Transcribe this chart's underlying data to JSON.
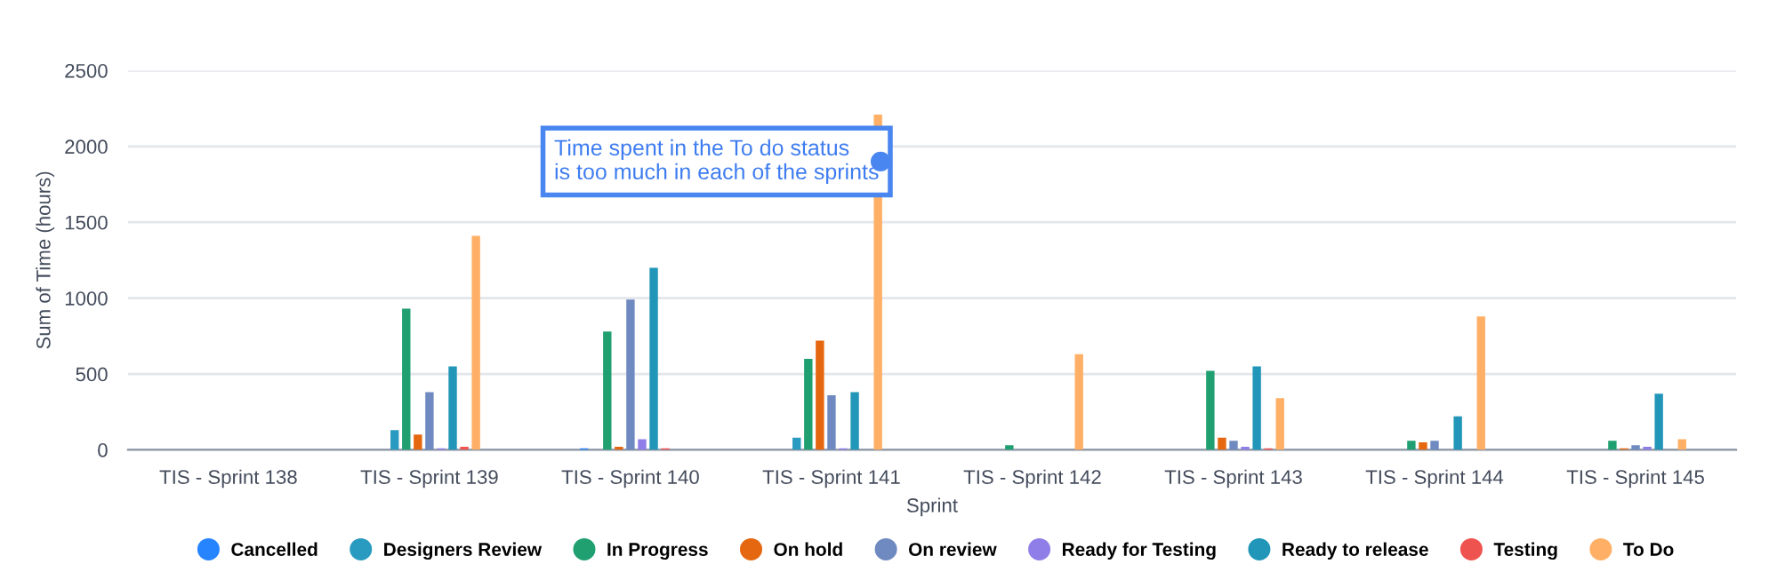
{
  "chart_data": {
    "type": "bar",
    "xlabel": "Sprint",
    "ylabel": "Sum of Time (hours)",
    "categories": [
      "TIS - Sprint 138",
      "TIS - Sprint 139",
      "TIS - Sprint 140",
      "TIS - Sprint 141",
      "TIS - Sprint 142",
      "TIS - Sprint 143",
      "TIS - Sprint 144",
      "TIS - Sprint 145"
    ],
    "series": [
      {
        "name": "Cancelled",
        "color": "#2684ff",
        "values": [
          0,
          0,
          10,
          0,
          0,
          0,
          0,
          0
        ]
      },
      {
        "name": "Designers Review",
        "color": "#2a9bc0",
        "values": [
          0,
          130,
          0,
          80,
          0,
          0,
          0,
          0
        ]
      },
      {
        "name": "In Progress",
        "color": "#20a070",
        "values": [
          0,
          930,
          780,
          600,
          30,
          520,
          60,
          60
        ]
      },
      {
        "name": "On hold",
        "color": "#e5670f",
        "values": [
          0,
          100,
          20,
          720,
          0,
          80,
          50,
          10
        ]
      },
      {
        "name": "On review",
        "color": "#6f8ac0",
        "values": [
          0,
          380,
          990,
          360,
          0,
          60,
          60,
          30
        ]
      },
      {
        "name": "Ready for Testing",
        "color": "#8f7ee8",
        "values": [
          0,
          10,
          70,
          10,
          0,
          20,
          0,
          20
        ]
      },
      {
        "name": "Ready to release",
        "color": "#2196b8",
        "values": [
          0,
          550,
          1200,
          380,
          0,
          550,
          220,
          370
        ]
      },
      {
        "name": "Testing",
        "color": "#ef5350",
        "values": [
          0,
          20,
          10,
          0,
          0,
          10,
          0,
          0
        ]
      },
      {
        "name": "To Do",
        "color": "#ffb066",
        "values": [
          0,
          1410,
          null,
          2210,
          630,
          340,
          880,
          70
        ]
      }
    ],
    "ylim": [
      0,
      2500
    ],
    "yticks": [
      0,
      500,
      1000,
      1500,
      2000,
      2500
    ],
    "grid": "y",
    "legend": "bottom",
    "annotations": [
      "Time spent in the To do status\nis too much in each of the sprints"
    ]
  }
}
